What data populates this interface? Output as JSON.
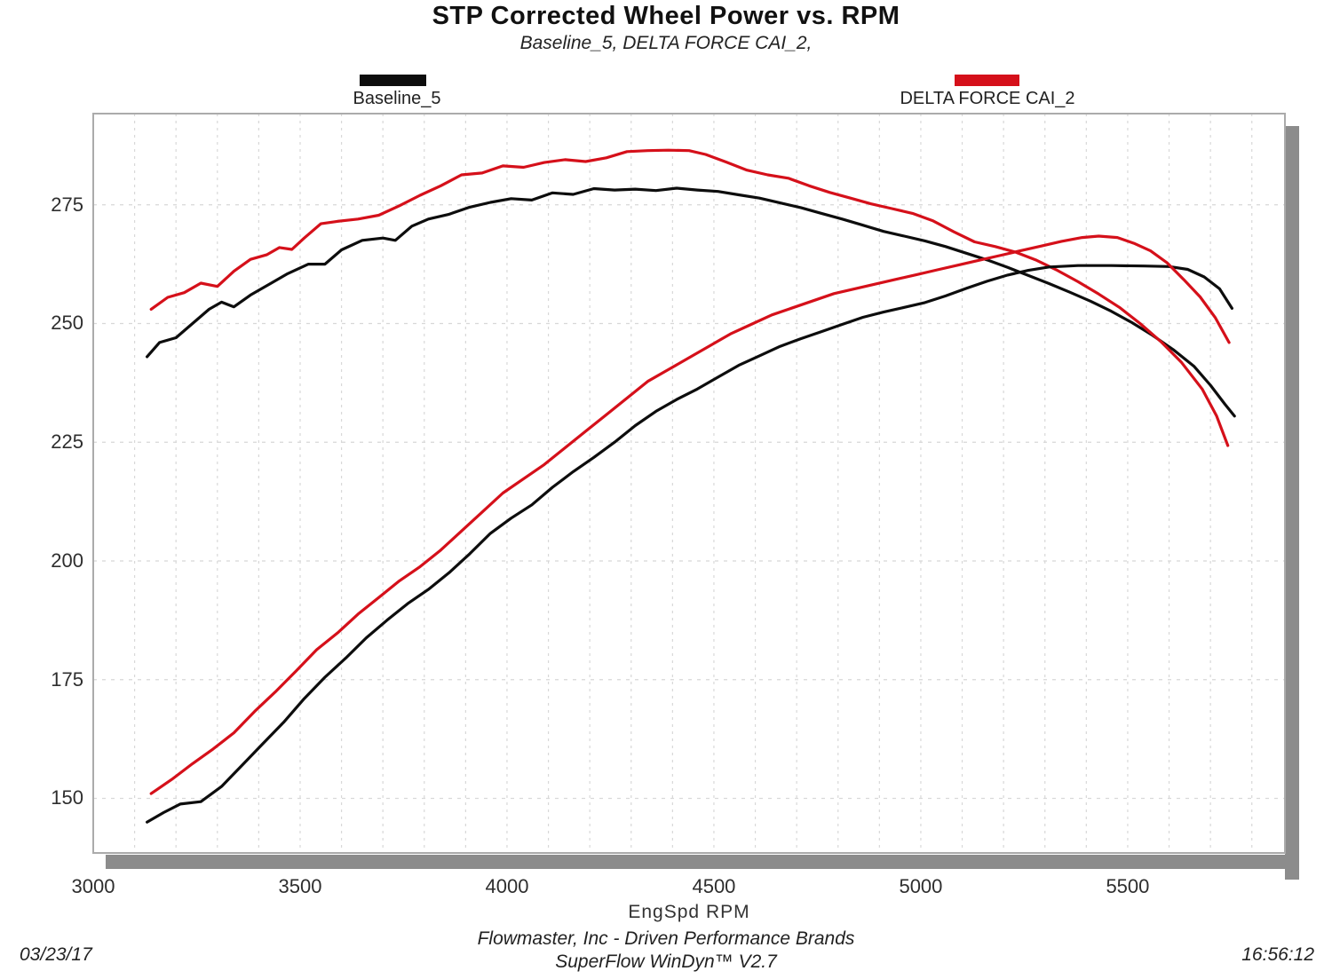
{
  "chart": {
    "title": "STP Corrected Wheel Power vs. RPM",
    "subtitle": "Baseline_5, DELTA FORCE CAI_2,",
    "xlabel": "EngSpd RPM",
    "footer_line1": "Flowmaster, Inc - Driven Performance Brands",
    "footer_line2": "SuperFlow WinDyn™ V2.7",
    "date": "03/23/17",
    "time": "16:56:12"
  },
  "colors": {
    "baseline_black": "#0d0d0d",
    "cai_red": "#d5101a",
    "grid": "#d8d8d8",
    "plot_border": "#ababab",
    "shadow": "#8c8c8c",
    "plot_background": "#ffffff"
  },
  "chart_data": {
    "type": "line",
    "title": "STP Corrected Wheel Power vs. RPM",
    "subtitle": "Baseline_5, DELTA FORCE CAI_2,",
    "xlabel": "EngSpd RPM",
    "ylabel": "",
    "xlim": [
      3000,
      5880
    ],
    "ylim": [
      138.5,
      294.2
    ],
    "x_ticks": [
      3000,
      3500,
      4000,
      4500,
      5000,
      5500
    ],
    "y_ticks": [
      150,
      175,
      200,
      225,
      250,
      275
    ],
    "grid": {
      "shown": true,
      "style": "dashed",
      "vertical_every_rpm": 100,
      "horizontal_every": 25
    },
    "legend_position": "top",
    "legend": [
      {
        "label": "Baseline_5",
        "color": "#0d0d0d"
      },
      {
        "label": "DELTA FORCE CAI_2",
        "color": "#d5101a"
      }
    ],
    "series": [
      {
        "id": "baseline5-upper-curve",
        "run": "Baseline_5",
        "color": "#0d0d0d",
        "points": [
          [
            3130,
            243
          ],
          [
            3160,
            246
          ],
          [
            3200,
            247
          ],
          [
            3240,
            250
          ],
          [
            3280,
            253
          ],
          [
            3310,
            254.5
          ],
          [
            3340,
            253.5
          ],
          [
            3380,
            256
          ],
          [
            3430,
            258.5
          ],
          [
            3470,
            260.5
          ],
          [
            3520,
            262.5
          ],
          [
            3560,
            262.5
          ],
          [
            3600,
            265.5
          ],
          [
            3650,
            267.5
          ],
          [
            3700,
            268
          ],
          [
            3730,
            267.5
          ],
          [
            3770,
            270.5
          ],
          [
            3810,
            272
          ],
          [
            3860,
            273
          ],
          [
            3910,
            274.5
          ],
          [
            3960,
            275.5
          ],
          [
            4010,
            276.3
          ],
          [
            4060,
            276
          ],
          [
            4110,
            277.5
          ],
          [
            4160,
            277.2
          ],
          [
            4210,
            278.4
          ],
          [
            4260,
            278.1
          ],
          [
            4310,
            278.3
          ],
          [
            4360,
            278
          ],
          [
            4410,
            278.5
          ],
          [
            4460,
            278.1
          ],
          [
            4510,
            277.8
          ],
          [
            4560,
            277.1
          ],
          [
            4610,
            276.4
          ],
          [
            4660,
            275.4
          ],
          [
            4710,
            274.4
          ],
          [
            4760,
            273.2
          ],
          [
            4810,
            272
          ],
          [
            4860,
            270.7
          ],
          [
            4910,
            269.4
          ],
          [
            4960,
            268.4
          ],
          [
            5010,
            267.4
          ],
          [
            5060,
            266.2
          ],
          [
            5110,
            264.8
          ],
          [
            5160,
            263.4
          ],
          [
            5210,
            261.8
          ],
          [
            5260,
            260.1
          ],
          [
            5310,
            258.4
          ],
          [
            5360,
            256.6
          ],
          [
            5410,
            254.7
          ],
          [
            5460,
            252.6
          ],
          [
            5510,
            250.2
          ],
          [
            5560,
            247.5
          ],
          [
            5610,
            244.5
          ],
          [
            5660,
            241
          ],
          [
            5700,
            237
          ],
          [
            5735,
            233
          ],
          [
            5758,
            230.5
          ]
        ]
      },
      {
        "id": "deltaforce-upper-curve",
        "run": "DELTA FORCE CAI_2",
        "color": "#d5101a",
        "points": [
          [
            3140,
            253
          ],
          [
            3180,
            255.5
          ],
          [
            3220,
            256.5
          ],
          [
            3260,
            258.5
          ],
          [
            3300,
            257.8
          ],
          [
            3340,
            261
          ],
          [
            3380,
            263.5
          ],
          [
            3420,
            264.5
          ],
          [
            3450,
            266
          ],
          [
            3480,
            265.6
          ],
          [
            3510,
            268
          ],
          [
            3550,
            271
          ],
          [
            3590,
            271.5
          ],
          [
            3640,
            272
          ],
          [
            3690,
            272.8
          ],
          [
            3740,
            274.8
          ],
          [
            3790,
            277
          ],
          [
            3840,
            279
          ],
          [
            3890,
            281.3
          ],
          [
            3940,
            281.7
          ],
          [
            3990,
            283.2
          ],
          [
            4040,
            282.9
          ],
          [
            4090,
            283.9
          ],
          [
            4140,
            284.5
          ],
          [
            4190,
            284.1
          ],
          [
            4240,
            284.9
          ],
          [
            4290,
            286.2
          ],
          [
            4340,
            286.4
          ],
          [
            4390,
            286.5
          ],
          [
            4440,
            286.4
          ],
          [
            4480,
            285.6
          ],
          [
            4530,
            284
          ],
          [
            4580,
            282.3
          ],
          [
            4630,
            281.3
          ],
          [
            4680,
            280.6
          ],
          [
            4730,
            279
          ],
          [
            4780,
            277.6
          ],
          [
            4830,
            276.4
          ],
          [
            4880,
            275.2
          ],
          [
            4930,
            274.2
          ],
          [
            4980,
            273.2
          ],
          [
            5030,
            271.6
          ],
          [
            5080,
            269.3
          ],
          [
            5130,
            267.2
          ],
          [
            5180,
            266.2
          ],
          [
            5230,
            265
          ],
          [
            5280,
            263.3
          ],
          [
            5330,
            261.2
          ],
          [
            5380,
            258.8
          ],
          [
            5430,
            256.2
          ],
          [
            5480,
            253.4
          ],
          [
            5530,
            250
          ],
          [
            5580,
            246.2
          ],
          [
            5630,
            241.8
          ],
          [
            5680,
            236.2
          ],
          [
            5715,
            230.5
          ],
          [
            5742,
            224.3
          ]
        ]
      },
      {
        "id": "baseline5-lower-curve",
        "run": "Baseline_5",
        "color": "#0d0d0d",
        "points": [
          [
            3130,
            145
          ],
          [
            3170,
            147
          ],
          [
            3210,
            148.8
          ],
          [
            3260,
            149.3
          ],
          [
            3310,
            152.5
          ],
          [
            3360,
            157
          ],
          [
            3410,
            161.5
          ],
          [
            3460,
            166
          ],
          [
            3510,
            171
          ],
          [
            3560,
            175.5
          ],
          [
            3610,
            179.5
          ],
          [
            3660,
            183.8
          ],
          [
            3710,
            187.5
          ],
          [
            3760,
            191
          ],
          [
            3810,
            194
          ],
          [
            3860,
            197.5
          ],
          [
            3910,
            201.5
          ],
          [
            3960,
            205.8
          ],
          [
            4010,
            209
          ],
          [
            4060,
            211.8
          ],
          [
            4110,
            215.5
          ],
          [
            4160,
            218.8
          ],
          [
            4210,
            221.8
          ],
          [
            4260,
            225
          ],
          [
            4310,
            228.5
          ],
          [
            4360,
            231.5
          ],
          [
            4410,
            234
          ],
          [
            4460,
            236.2
          ],
          [
            4510,
            238.7
          ],
          [
            4560,
            241.2
          ],
          [
            4610,
            243.2
          ],
          [
            4660,
            245.2
          ],
          [
            4710,
            246.8
          ],
          [
            4760,
            248.3
          ],
          [
            4810,
            249.8
          ],
          [
            4860,
            251.3
          ],
          [
            4910,
            252.4
          ],
          [
            4960,
            253.4
          ],
          [
            5010,
            254.4
          ],
          [
            5060,
            255.8
          ],
          [
            5110,
            257.4
          ],
          [
            5160,
            258.9
          ],
          [
            5210,
            260.2
          ],
          [
            5260,
            261.2
          ],
          [
            5310,
            261.9
          ],
          [
            5380,
            262.2
          ],
          [
            5460,
            262.2
          ],
          [
            5540,
            262.1
          ],
          [
            5600,
            262
          ],
          [
            5645,
            261.4
          ],
          [
            5685,
            259.8
          ],
          [
            5722,
            257.3
          ],
          [
            5752,
            253.2
          ]
        ]
      },
      {
        "id": "deltaforce-lower-curve",
        "run": "DELTA FORCE CAI_2",
        "color": "#d5101a",
        "points": [
          [
            3140,
            151
          ],
          [
            3190,
            154
          ],
          [
            3240,
            157.3
          ],
          [
            3290,
            160.4
          ],
          [
            3340,
            163.8
          ],
          [
            3390,
            168.3
          ],
          [
            3440,
            172.4
          ],
          [
            3490,
            176.8
          ],
          [
            3540,
            181.3
          ],
          [
            3590,
            184.8
          ],
          [
            3640,
            188.8
          ],
          [
            3690,
            192.3
          ],
          [
            3740,
            195.8
          ],
          [
            3790,
            198.8
          ],
          [
            3840,
            202.3
          ],
          [
            3890,
            206.3
          ],
          [
            3940,
            210.3
          ],
          [
            3990,
            214.3
          ],
          [
            4040,
            217.3
          ],
          [
            4090,
            220.3
          ],
          [
            4140,
            223.8
          ],
          [
            4190,
            227.3
          ],
          [
            4240,
            230.8
          ],
          [
            4290,
            234.3
          ],
          [
            4340,
            237.8
          ],
          [
            4390,
            240.3
          ],
          [
            4440,
            242.8
          ],
          [
            4490,
            245.3
          ],
          [
            4540,
            247.8
          ],
          [
            4590,
            249.8
          ],
          [
            4640,
            251.8
          ],
          [
            4690,
            253.3
          ],
          [
            4740,
            254.8
          ],
          [
            4790,
            256.3
          ],
          [
            4840,
            257.3
          ],
          [
            4890,
            258.3
          ],
          [
            4940,
            259.3
          ],
          [
            4990,
            260.3
          ],
          [
            5040,
            261.3
          ],
          [
            5090,
            262.3
          ],
          [
            5140,
            263.3
          ],
          [
            5190,
            264.3
          ],
          [
            5240,
            265.3
          ],
          [
            5290,
            266.3
          ],
          [
            5340,
            267.3
          ],
          [
            5390,
            268.1
          ],
          [
            5430,
            268.4
          ],
          [
            5475,
            268.1
          ],
          [
            5515,
            266.9
          ],
          [
            5555,
            265.3
          ],
          [
            5595,
            262.8
          ],
          [
            5635,
            259.3
          ],
          [
            5675,
            255.6
          ],
          [
            5712,
            251.2
          ],
          [
            5745,
            246
          ]
        ]
      }
    ]
  }
}
